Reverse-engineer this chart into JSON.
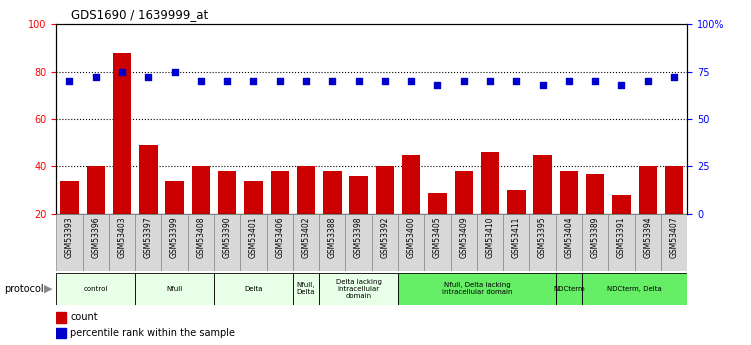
{
  "title": "GDS1690 / 1639999_at",
  "samples": [
    "GSM53393",
    "GSM53396",
    "GSM53403",
    "GSM53397",
    "GSM53399",
    "GSM53408",
    "GSM53390",
    "GSM53401",
    "GSM53406",
    "GSM53402",
    "GSM53388",
    "GSM53398",
    "GSM53392",
    "GSM53400",
    "GSM53405",
    "GSM53409",
    "GSM53410",
    "GSM53411",
    "GSM53395",
    "GSM53404",
    "GSM53389",
    "GSM53391",
    "GSM53394",
    "GSM53407"
  ],
  "counts": [
    34,
    40,
    88,
    49,
    34,
    40,
    38,
    34,
    38,
    40,
    38,
    36,
    40,
    45,
    29,
    38,
    46,
    30,
    45,
    38,
    37,
    28,
    40,
    40
  ],
  "percentiles": [
    70,
    72,
    75,
    72,
    75,
    70,
    70,
    70,
    70,
    70,
    70,
    70,
    70,
    70,
    68,
    70,
    70,
    70,
    68,
    70,
    70,
    68,
    70,
    72
  ],
  "groups": [
    {
      "label": "control",
      "start": 0,
      "end": 2,
      "color": "#e8ffe8"
    },
    {
      "label": "Nfull",
      "start": 3,
      "end": 5,
      "color": "#e8ffe8"
    },
    {
      "label": "Delta",
      "start": 6,
      "end": 8,
      "color": "#e8ffe8"
    },
    {
      "label": "Nfull,\nDelta",
      "start": 9,
      "end": 9,
      "color": "#e8ffe8"
    },
    {
      "label": "Delta lacking\nintracellular\ndomain",
      "start": 10,
      "end": 12,
      "color": "#e8ffe8"
    },
    {
      "label": "Nfull, Delta lacking\nintracellular domain",
      "start": 13,
      "end": 18,
      "color": "#66ee66"
    },
    {
      "label": "NDCterm",
      "start": 19,
      "end": 19,
      "color": "#66ee66"
    },
    {
      "label": "NDCterm, Delta",
      "start": 20,
      "end": 23,
      "color": "#66ee66"
    }
  ],
  "bar_color": "#cc0000",
  "percentile_color": "#0000cc",
  "ylim_left": [
    20,
    100
  ],
  "ylim_right": [
    0,
    100
  ],
  "yticks_left": [
    20,
    40,
    60,
    80,
    100
  ],
  "ytick_labels_left": [
    "20",
    "40",
    "60",
    "80",
    "100"
  ],
  "yticks_right_vals": [
    0,
    25,
    50,
    75,
    100
  ],
  "ytick_labels_right": [
    "0",
    "25",
    "50",
    "75",
    "100%"
  ]
}
